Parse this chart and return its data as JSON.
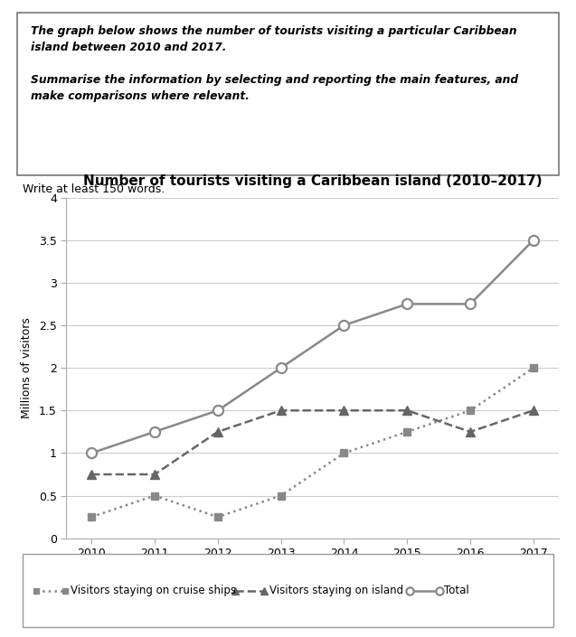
{
  "title": "Number of tourists visiting a Caribbean island (2010–2017)",
  "ylabel": "Millions of visitors",
  "years": [
    2010,
    2011,
    2012,
    2013,
    2014,
    2015,
    2016,
    2017
  ],
  "cruise_ships": [
    0.25,
    0.5,
    0.25,
    0.5,
    1.0,
    1.25,
    1.5,
    2.0
  ],
  "on_island": [
    0.75,
    0.75,
    1.25,
    1.5,
    1.5,
    1.5,
    1.25,
    1.5
  ],
  "total": [
    1.0,
    1.25,
    1.5,
    2.0,
    2.5,
    2.75,
    2.75,
    3.5
  ],
  "ylim": [
    0,
    4
  ],
  "yticks": [
    0,
    0.5,
    1.0,
    1.5,
    2.0,
    2.5,
    3.0,
    3.5,
    4.0
  ],
  "ytick_labels": [
    "0",
    "0.5",
    "1",
    "1.5",
    "2",
    "2.5",
    "3",
    "3.5",
    "4"
  ],
  "color_cruise": "#888888",
  "color_island": "#666666",
  "color_total": "#888888",
  "text_box_line1": "The graph below shows the number of tourists visiting a particular Caribbean",
  "text_box_line2": "island between 2010 and 2017.",
  "text_box_line3": "Summarise the information by selecting and reporting the main features, and",
  "text_box_line4": "make comparisons where relevant.",
  "write_text": "Write at least 150 words.",
  "legend_labels": [
    "Visitors staying on cruise ships",
    "Visitors staying on island",
    "Total"
  ]
}
